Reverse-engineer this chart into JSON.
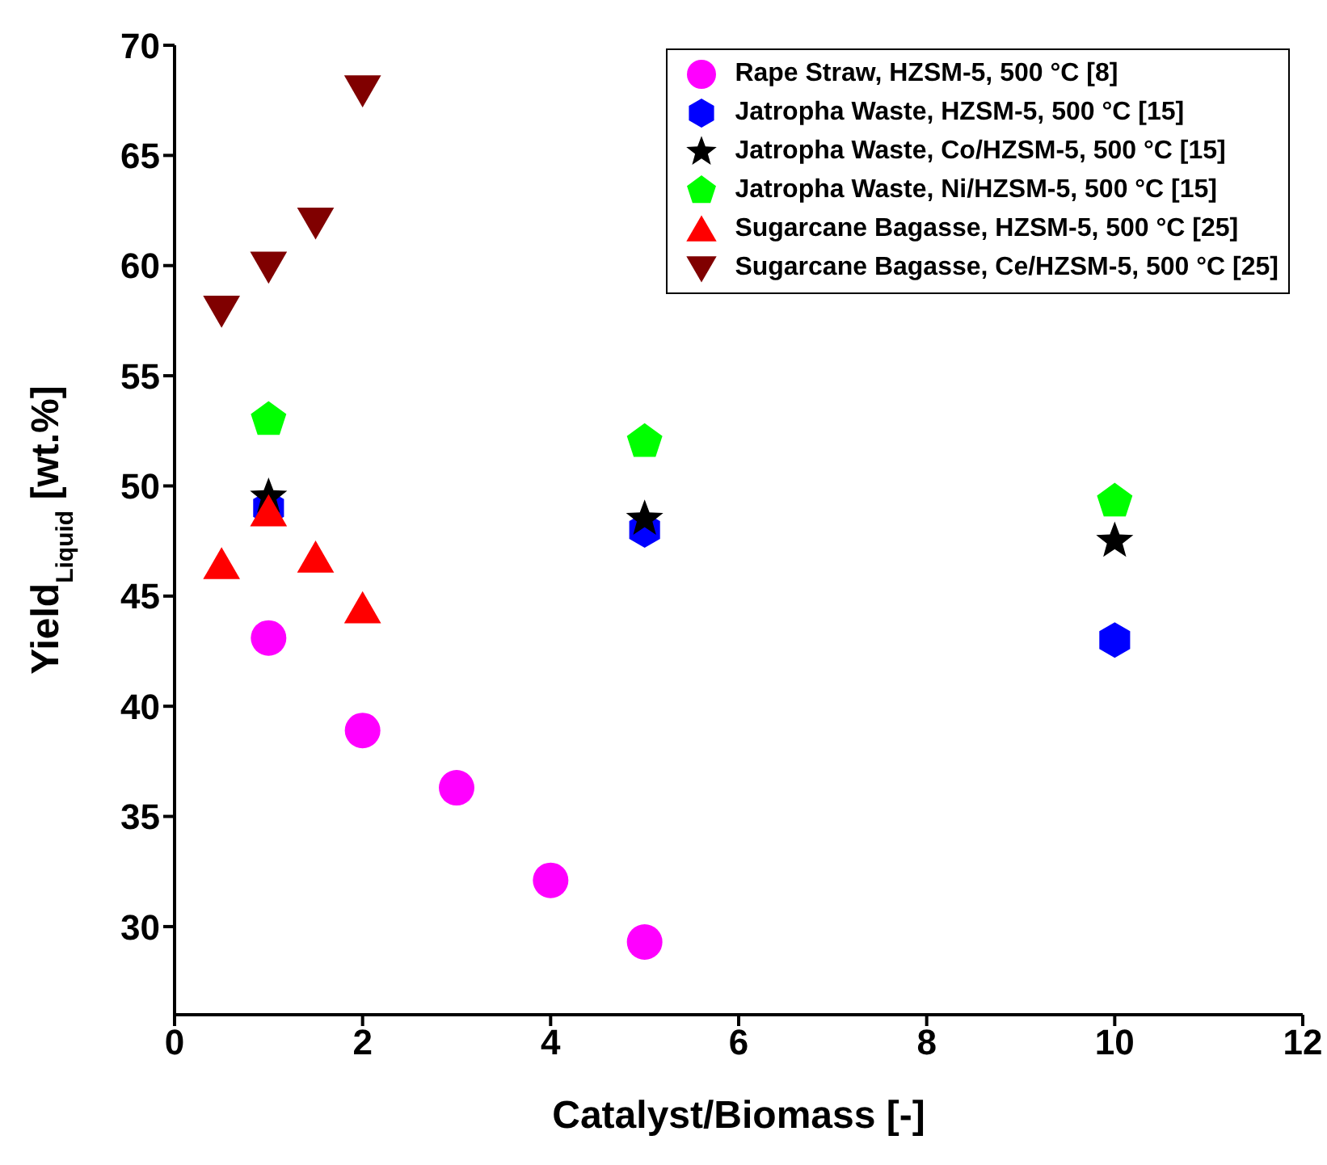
{
  "chart_data": {
    "type": "scatter",
    "xlabel": "Catalyst/Biomass [-]",
    "ylabel": "Yield$_{Liquid}$ [wt.%]",
    "xlim": [
      0,
      12
    ],
    "xticks": [
      0,
      2,
      4,
      6,
      8,
      10,
      12
    ],
    "ylim": [
      26,
      70
    ],
    "yticks": [
      30,
      35,
      40,
      45,
      50,
      55,
      60,
      65,
      70
    ],
    "grid": false,
    "legend": "top right",
    "series": [
      {
        "name": "Rape Straw, HZSM-5, 500 °C [8]",
        "color": "#ff00ff",
        "marker": "circle",
        "x": [
          1,
          2,
          3,
          4,
          5
        ],
        "values": [
          43.1,
          38.9,
          36.3,
          32.1,
          29.3
        ]
      },
      {
        "name": "Jatropha Waste, HZSM-5, 500 °C [15]",
        "color": "#0000ff",
        "x": [
          1,
          5,
          10
        ],
        "values": [
          49,
          48,
          43
        ]
      },
      {
        "name": "Jatropha Waste, Co/HZSM-5, 500 °C [15]",
        "color": "#000000",
        "marker": "star",
        "x": [
          1,
          5,
          10
        ],
        "values": [
          49.5,
          48.5,
          47.5
        ]
      },
      {
        "name": "Jatropha Waste, Ni/HZSM-5, 500 °C [15]",
        "color": "#00ff00",
        "x": [
          1,
          5,
          10
        ],
        "values": [
          53,
          52,
          49.3
        ]
      },
      {
        "name": "Sugarcane Bagasse, HZSM-5, 500 °C [25]",
        "color": "#ff0000",
        "marker": "triangle",
        "x": [
          0.5,
          1,
          1.5,
          2
        ],
        "values": [
          46.4,
          48.8,
          46.7,
          44.4
        ]
      },
      {
        "name": "Sugarcane Bagasse, Ce/HZSM-5, 500 °C [25]",
        "color": "#800000",
        "marker": "triangle-down",
        "x": [
          0.5,
          1,
          1.5,
          2
        ],
        "values": [
          58,
          60,
          62,
          68
        ]
      }
    ]
  }
}
